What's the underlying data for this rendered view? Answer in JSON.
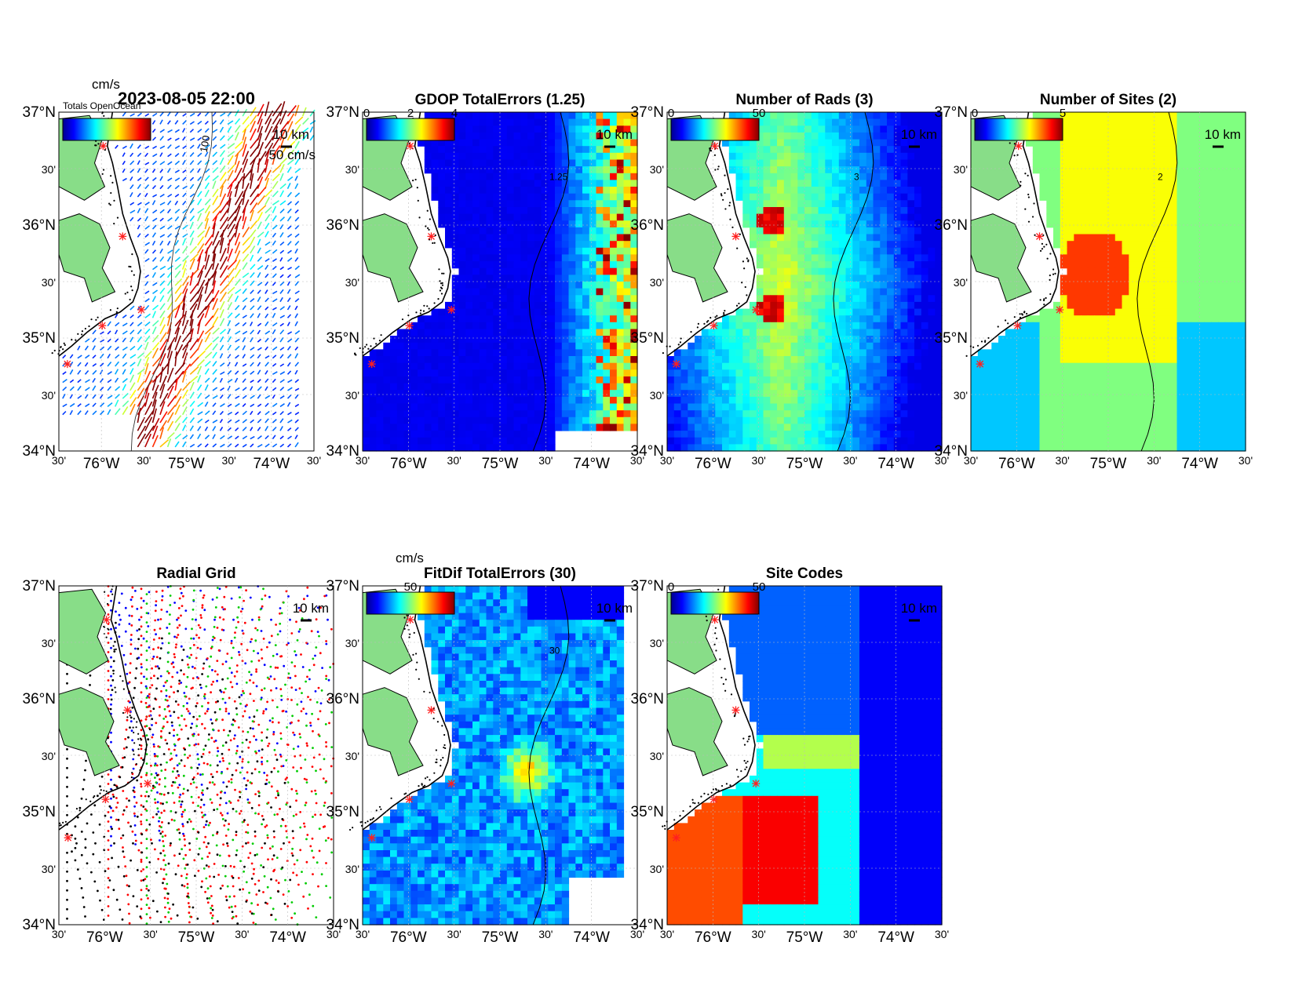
{
  "figure": {
    "axis_labels": {
      "lat": [
        "37°N",
        "30'",
        "36°N",
        "30'",
        "35°N",
        "30'",
        "34°N"
      ],
      "lon": [
        "30'",
        "76°W",
        "30'",
        "75°W",
        "30'",
        "74°W",
        "30'"
      ]
    },
    "scale_bar_label": "10 km",
    "colorbar_unit": "cm/s",
    "vector_scale_label": "50 cm/s",
    "contour_label": "100"
  },
  "chart_data": [
    {
      "id": "currents",
      "type": "heatmap",
      "title": "2023-08-05 22:00",
      "overlay_text": "Totals OpenOcean",
      "colorbar_label": "cm/s",
      "colorbar_ticks": [],
      "description_kind": "surface current vectors",
      "xlim": [
        -76.5,
        -73.5
      ],
      "ylim": [
        34.0,
        37.0
      ]
    },
    {
      "id": "gdop",
      "type": "heatmap",
      "title": "GDOP TotalErrors (1.25)",
      "colorbar_ticks": [
        "0",
        "2",
        "4"
      ],
      "contour_levels": [
        "1.25"
      ],
      "xlim": [
        -76.5,
        -73.5
      ],
      "ylim": [
        34.0,
        37.0
      ]
    },
    {
      "id": "nrads",
      "type": "heatmap",
      "title": "Number of Rads (3)",
      "colorbar_ticks": [
        "0",
        "50"
      ],
      "contour_levels": [
        "3"
      ],
      "xlim": [
        -76.5,
        -73.5
      ],
      "ylim": [
        34.0,
        37.0
      ]
    },
    {
      "id": "nsites",
      "type": "heatmap",
      "title": "Number of Sites (2)",
      "colorbar_ticks": [
        "0",
        "5"
      ],
      "contour_levels": [
        "2"
      ],
      "xlim": [
        -76.5,
        -73.5
      ],
      "ylim": [
        34.0,
        37.0
      ]
    },
    {
      "id": "radgrid",
      "type": "scatter",
      "title": "Radial Grid",
      "series_colors": [
        "#0000ff",
        "#ff0000",
        "#00cc00",
        "#000000"
      ],
      "xlim": [
        -76.5,
        -73.5
      ],
      "ylim": [
        34.0,
        37.0
      ]
    },
    {
      "id": "fitdif",
      "type": "heatmap",
      "title": "FitDif TotalErrors (30)",
      "colorbar_label": "cm/s",
      "colorbar_ticks": [
        "50"
      ],
      "contour_levels": [
        "30"
      ],
      "xlim": [
        -76.5,
        -73.5
      ],
      "ylim": [
        34.0,
        37.0
      ]
    },
    {
      "id": "sitecodes",
      "type": "heatmap",
      "title": "Site Codes",
      "colorbar_ticks": [
        "0",
        "50"
      ],
      "xlim": [
        -76.5,
        -73.5
      ],
      "ylim": [
        34.0,
        37.0
      ]
    }
  ],
  "radar_sites": [
    {
      "lon": -75.98,
      "lat": 36.7
    },
    {
      "lon": -75.75,
      "lat": 35.9
    },
    {
      "lon": -75.53,
      "lat": 35.25
    },
    {
      "lon": -75.99,
      "lat": 35.11
    },
    {
      "lon": -76.4,
      "lat": 34.77
    }
  ],
  "colors": {
    "land": "#88dd88",
    "site_marker": "#ff2020",
    "jet": [
      "#00008f",
      "#0000ff",
      "#0080ff",
      "#00ffff",
      "#80ff80",
      "#ffff00",
      "#ff8000",
      "#ff0000",
      "#800000"
    ]
  }
}
